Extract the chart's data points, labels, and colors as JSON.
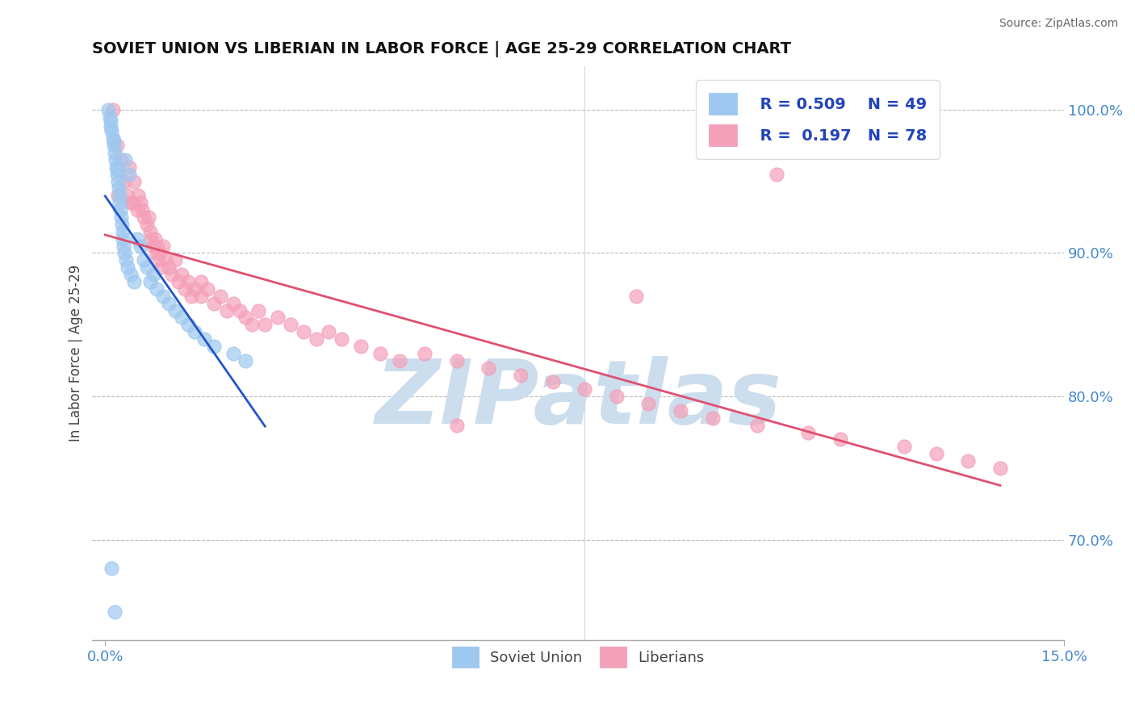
{
  "title": "SOVIET UNION VS LIBERIAN IN LABOR FORCE | AGE 25-29 CORRELATION CHART",
  "source_text": "Source: ZipAtlas.com",
  "ylabel": "In Labor Force | Age 25-29",
  "xlim": [
    0.0,
    15.0
  ],
  "ylim": [
    63.0,
    103.0
  ],
  "x_tick_labels": [
    "0.0%",
    "15.0%"
  ],
  "y_ticks": [
    70.0,
    80.0,
    90.0,
    100.0
  ],
  "y_tick_labels": [
    "70.0%",
    "80.0%",
    "90.0%",
    "100.0%"
  ],
  "blue_color": "#9ec8f0",
  "pink_color": "#f4a0b8",
  "line_blue": "#2255cc",
  "line_pink": "#e05070",
  "watermark": "ZIPatlas",
  "watermark_color": "#ccdded",
  "soviet_x": [
    0.05,
    0.07,
    0.08,
    0.09,
    0.1,
    0.12,
    0.13,
    0.14,
    0.15,
    0.16,
    0.17,
    0.18,
    0.19,
    0.2,
    0.21,
    0.22,
    0.23,
    0.24,
    0.25,
    0.26,
    0.27,
    0.28,
    0.29,
    0.3,
    0.31,
    0.33,
    0.35,
    0.37,
    0.4,
    0.45,
    0.5,
    0.55,
    0.6,
    0.65,
    0.7,
    0.75,
    0.8,
    0.9,
    1.0,
    1.1,
    1.2,
    1.3,
    1.4,
    1.55,
    1.7,
    2.0,
    2.2,
    0.1,
    0.15
  ],
  "soviet_y": [
    100.0,
    99.5,
    99.2,
    98.8,
    98.5,
    98.0,
    97.5,
    97.8,
    97.0,
    96.5,
    96.0,
    95.5,
    95.8,
    95.0,
    94.5,
    94.0,
    93.5,
    93.0,
    92.5,
    92.0,
    91.5,
    91.0,
    90.5,
    90.0,
    96.5,
    89.5,
    89.0,
    95.5,
    88.5,
    88.0,
    91.0,
    90.5,
    89.5,
    89.0,
    88.0,
    88.5,
    87.5,
    87.0,
    86.5,
    86.0,
    85.5,
    85.0,
    84.5,
    84.0,
    83.5,
    83.0,
    82.5,
    68.0,
    65.0
  ],
  "liberian_x": [
    0.12,
    0.18,
    0.25,
    0.3,
    0.35,
    0.38,
    0.42,
    0.45,
    0.5,
    0.52,
    0.55,
    0.58,
    0.6,
    0.65,
    0.68,
    0.7,
    0.72,
    0.75,
    0.78,
    0.8,
    0.82,
    0.85,
    0.88,
    0.9,
    0.95,
    1.0,
    1.05,
    1.1,
    1.15,
    1.2,
    1.25,
    1.3,
    1.35,
    1.4,
    1.5,
    1.6,
    1.7,
    1.8,
    1.9,
    2.0,
    2.1,
    2.2,
    2.3,
    2.4,
    2.5,
    2.7,
    2.9,
    3.1,
    3.3,
    3.5,
    3.7,
    4.0,
    4.3,
    4.6,
    5.0,
    5.5,
    6.0,
    6.5,
    7.0,
    7.5,
    8.0,
    8.5,
    9.0,
    9.5,
    10.2,
    11.0,
    11.5,
    12.5,
    13.0,
    13.5,
    14.0,
    0.2,
    0.4,
    0.8,
    1.5,
    5.5,
    8.3,
    10.5
  ],
  "liberian_y": [
    100.0,
    97.5,
    96.5,
    95.0,
    94.0,
    96.0,
    93.5,
    95.0,
    93.0,
    94.0,
    93.5,
    93.0,
    92.5,
    92.0,
    92.5,
    91.5,
    91.0,
    90.5,
    91.0,
    90.0,
    89.5,
    90.0,
    89.0,
    90.5,
    89.5,
    89.0,
    88.5,
    89.5,
    88.0,
    88.5,
    87.5,
    88.0,
    87.0,
    87.5,
    87.0,
    87.5,
    86.5,
    87.0,
    86.0,
    86.5,
    86.0,
    85.5,
    85.0,
    86.0,
    85.0,
    85.5,
    85.0,
    84.5,
    84.0,
    84.5,
    84.0,
    83.5,
    83.0,
    82.5,
    83.0,
    82.5,
    82.0,
    81.5,
    81.0,
    80.5,
    80.0,
    79.5,
    79.0,
    78.5,
    78.0,
    77.5,
    77.0,
    76.5,
    76.0,
    75.5,
    75.0,
    94.0,
    93.5,
    90.5,
    88.0,
    78.0,
    87.0,
    95.5
  ]
}
